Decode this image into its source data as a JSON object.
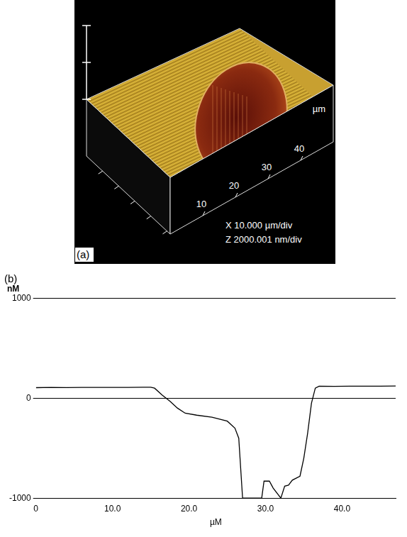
{
  "panel_a": {
    "label": "(a)",
    "axis_unit": "µm",
    "xticks": [
      10,
      20,
      30,
      40
    ],
    "scale_x": "X 10.000 µm/div",
    "scale_z": "Z 2000.001 nm/div"
  },
  "chart_data": {
    "type": "line",
    "panel_label": "(b)",
    "y_label": "nM",
    "x_label": "µM",
    "x": [
      0,
      2,
      4,
      6,
      8,
      10,
      12,
      14,
      15,
      15.5,
      16.5,
      17.5,
      18.5,
      19.5,
      21,
      23,
      25,
      26,
      26.5,
      27,
      28,
      29,
      29.5,
      29.8,
      30.5,
      31,
      32,
      32.5,
      33,
      33.5,
      34.5,
      35,
      35.5,
      36,
      36.5,
      37,
      39,
      41,
      43,
      45,
      47
    ],
    "values": [
      105,
      108,
      106,
      108,
      107,
      108,
      108,
      110,
      110,
      100,
      30,
      -30,
      -100,
      -150,
      -170,
      -190,
      -230,
      -300,
      -400,
      -1000,
      -1000,
      -1000,
      -1000,
      -830,
      -830,
      -900,
      -1000,
      -880,
      -870,
      -820,
      -780,
      -600,
      -350,
      -50,
      100,
      120,
      118,
      120,
      120,
      120,
      122
    ],
    "color": "#000000",
    "xlim": [
      0,
      47
    ],
    "xticks": [
      0,
      {
        "value": 10,
        "label": "10.0"
      },
      {
        "value": 20,
        "label": "20.0"
      },
      {
        "value": 30,
        "label": "30.0"
      },
      {
        "value": 40,
        "label": "40.0"
      }
    ],
    "ylim": [
      -1000,
      1000
    ],
    "yticks": [
      -1000,
      0,
      1000
    ],
    "grid": true
  }
}
